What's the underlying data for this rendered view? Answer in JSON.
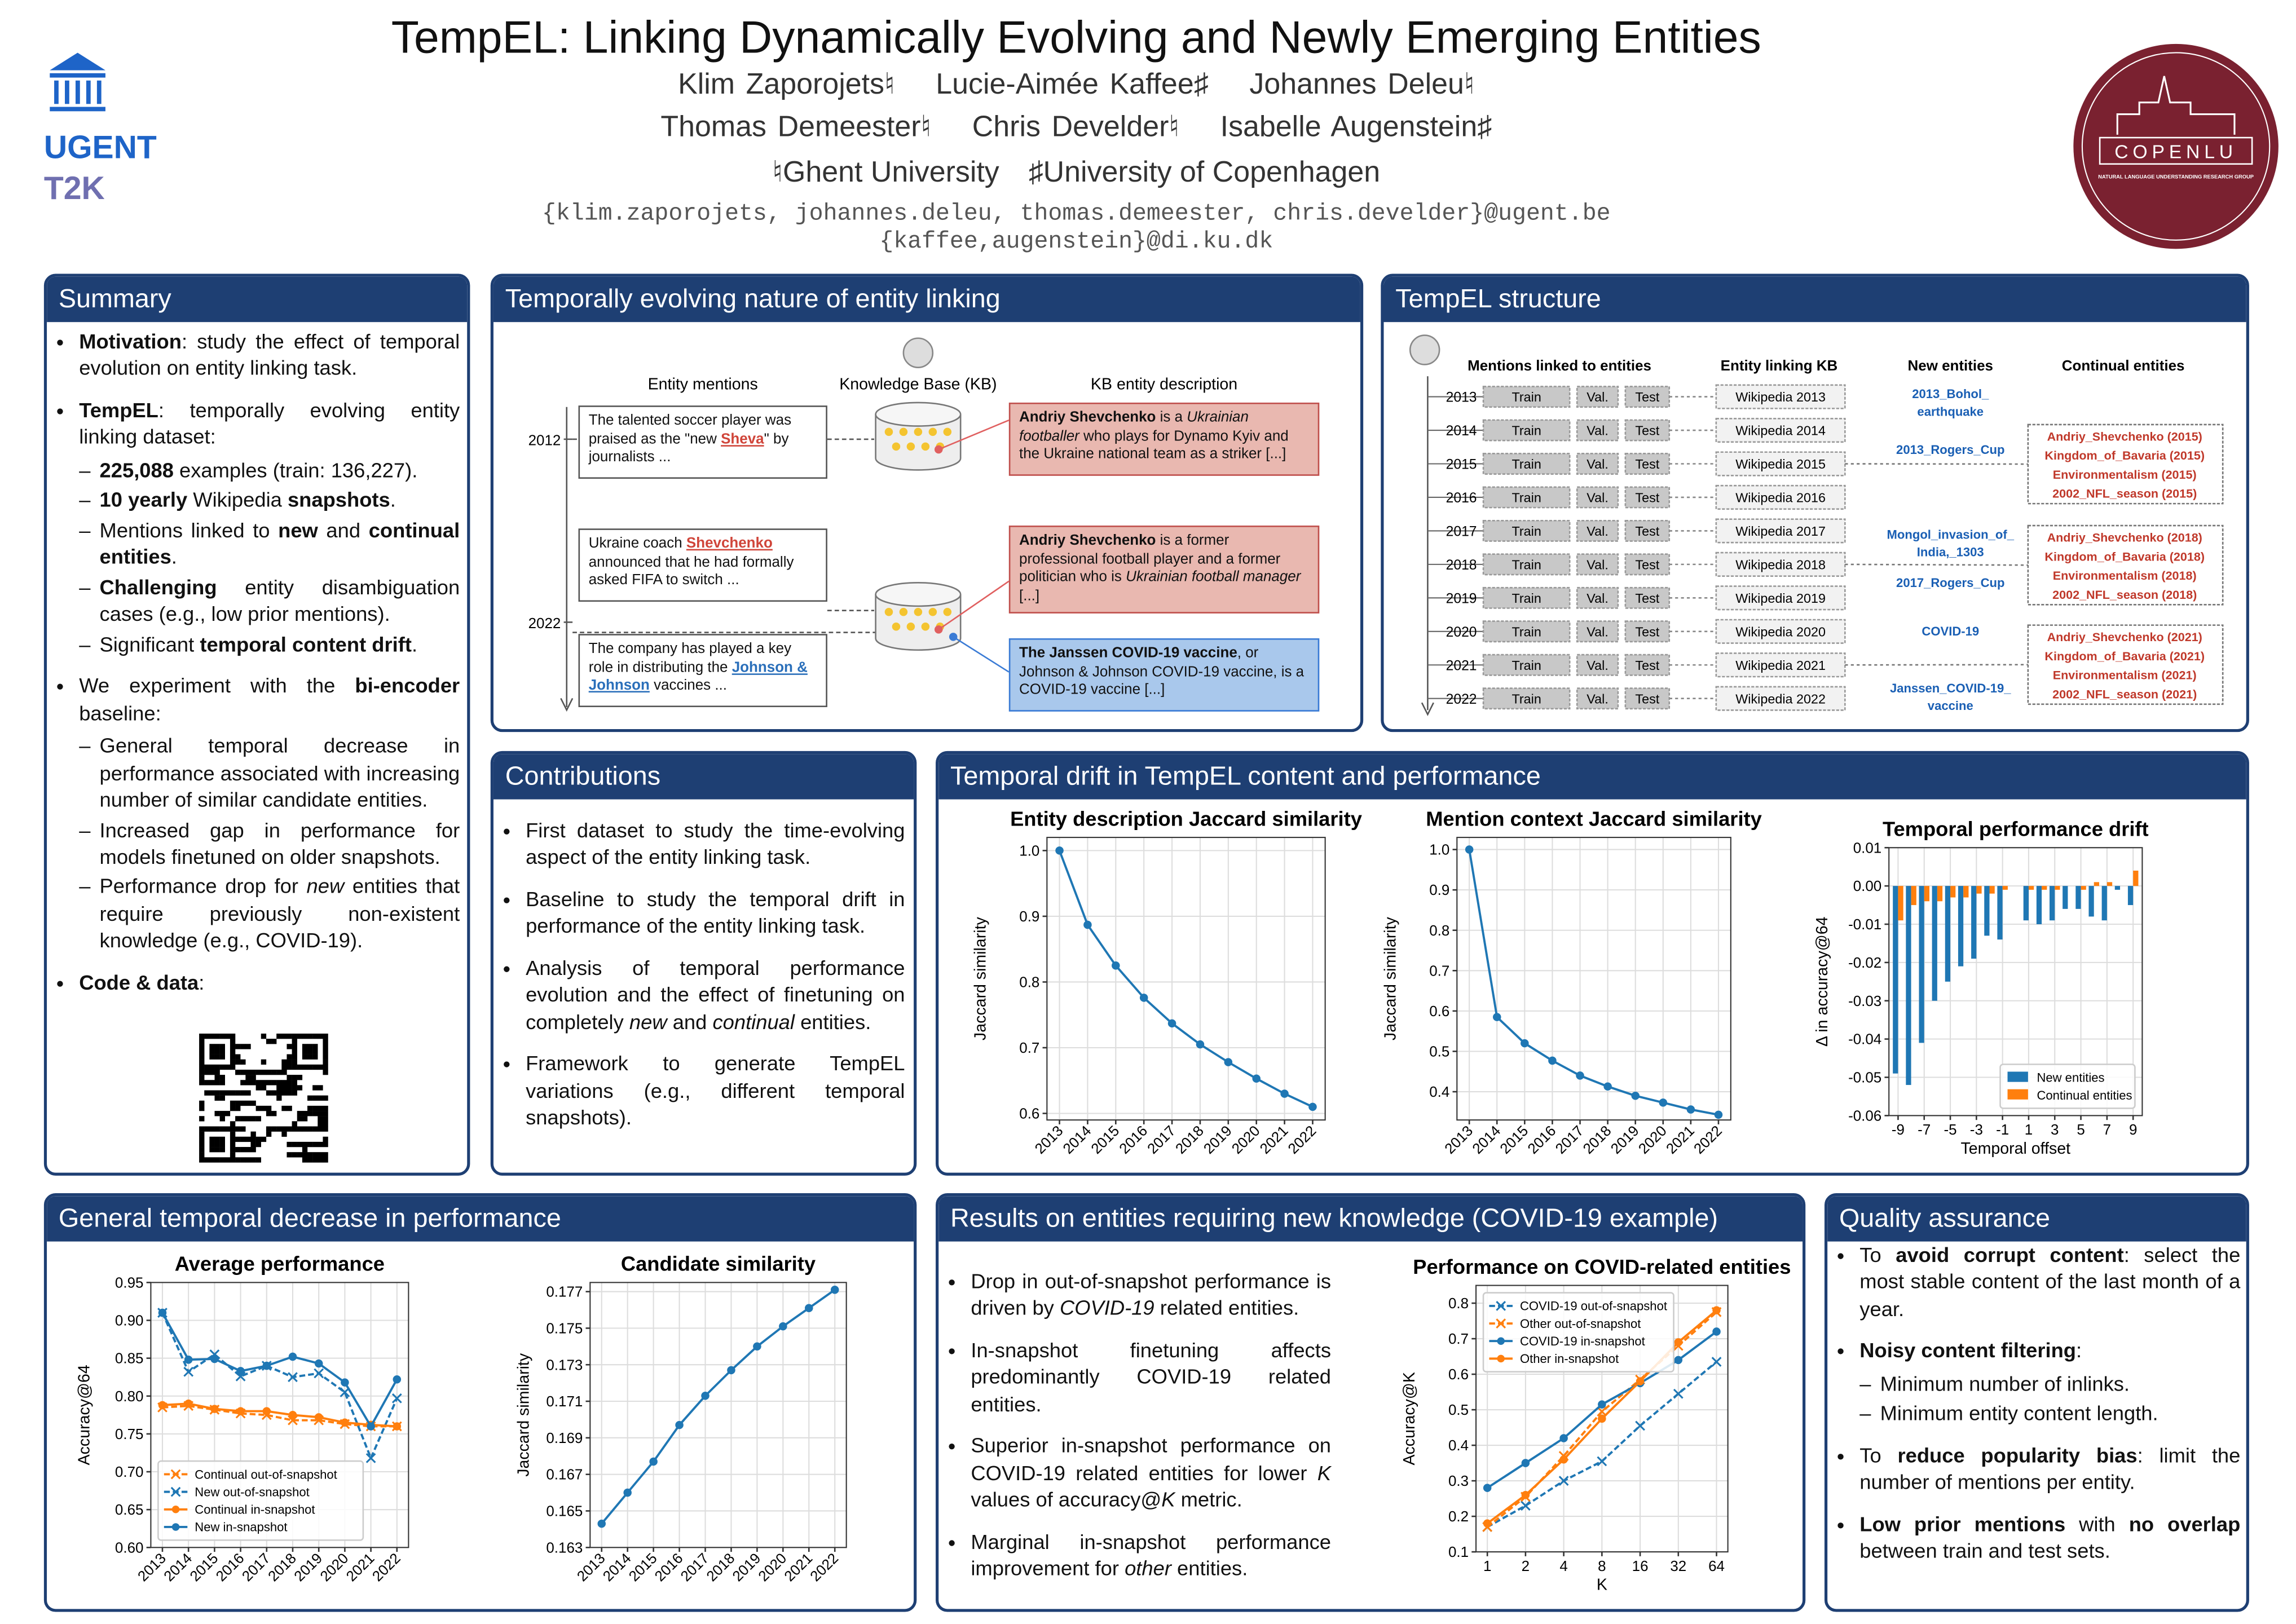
{
  "header": {
    "title": "TempEL: Linking Dynamically Evolving and Newly Emerging Entities",
    "authors": [
      [
        "Klim Zaporojets♮",
        "Lucie-Aimée Kaffee♯",
        "Johannes Deleu♮"
      ],
      [
        "Thomas Demeester♮",
        "Chris Develder♮",
        "Isabelle Augenstein♯"
      ]
    ],
    "affiliations": [
      "♮Ghent University",
      "♯University of Copenhagen"
    ],
    "emails": [
      "{klim.zaporojets, johannes.deleu, thomas.demeester, chris.develder}@ugent.be",
      "{kaffee,augenstein}@di.ku.dk"
    ],
    "logos": {
      "left": [
        "UGENT",
        "T2K"
      ],
      "right": [
        "COPENLU",
        "NATURAL LANGUAGE UNDERSTANDING RESEARCH GROUP"
      ]
    }
  },
  "summary": {
    "title": "Summary",
    "items": [
      {
        "text": [
          {
            "text": "Motivation",
            "style": "bold"
          },
          ": study the effect of temporal evolution on entity linking task."
        ]
      },
      {
        "text": [
          {
            "text": "TempEL",
            "style": "bold"
          },
          ": temporally evolving entity linking dataset:"
        ],
        "sub": [
          [
            {
              "text": "225,088",
              "style": "bold"
            },
            " examples (train: 136,227)."
          ],
          [
            {
              "text": "10 yearly",
              "style": "bold"
            },
            " Wikipedia ",
            {
              "text": "snapshots",
              "style": "bold"
            },
            "."
          ],
          [
            "Mentions linked to ",
            {
              "text": "new",
              "style": "bold"
            },
            " and ",
            {
              "text": "continual entities",
              "style": "bold"
            },
            "."
          ],
          [
            {
              "text": "Challenging",
              "style": "bold"
            },
            " entity disambiguation cases (e.g., low prior mentions)."
          ],
          [
            "Significant ",
            {
              "text": "temporal content drift",
              "style": "bold"
            },
            "."
          ]
        ]
      },
      {
        "text": [
          "We experiment with the ",
          {
            "text": "bi-encoder",
            "style": "bold"
          },
          " baseline:"
        ],
        "sub": [
          [
            "General temporal decrease in performance associated with increasing number of similar candidate entities."
          ],
          [
            "Increased gap in performance for models finetuned on older snapshots."
          ],
          [
            "Performance drop for ",
            {
              "text": "new",
              "style": "italic"
            },
            " entities that require previously non-existent knowledge (e.g., COVID-19)."
          ]
        ]
      },
      {
        "text": [
          {
            "text": "Code & data",
            "style": "bold"
          },
          ":"
        ]
      }
    ]
  },
  "evolving": {
    "title": "Temporally evolving nature of entity linking",
    "headers": [
      "Entity mentions",
      "Knowledge Base (KB)",
      "KB entity description"
    ],
    "years": [
      "2012",
      "2022"
    ],
    "mentions": [
      [
        "The talented soccer player was praised as the \"new ",
        {
          "text": "Sheva",
          "style": "red-link"
        },
        "\" by journalists ..."
      ],
      [
        "Ukraine coach ",
        {
          "text": "Shevchenko",
          "style": "red-link"
        },
        " announced that he had formally asked FIFA to switch ..."
      ],
      [
        "The company has played a key role in distributing the ",
        {
          "text": "Johnson & Johnson",
          "style": "blue-link"
        },
        " vaccines ..."
      ]
    ],
    "descriptions": [
      [
        {
          "text": "Andriy Shevchenko",
          "style": "bold"
        },
        " is a ",
        {
          "text": "Ukrainian footballer",
          "style": "italic"
        },
        " who plays for Dynamo Kyiv and the Ukraine national team as a striker [...]"
      ],
      [
        {
          "text": "Andriy Shevchenko",
          "style": "bold"
        },
        " is a former professional football player and a former politician who is ",
        {
          "text": "Ukrainian football manager",
          "style": "italic"
        },
        " [...]"
      ],
      [
        {
          "text": "The Janssen COVID-19 vaccine",
          "style": "bold"
        },
        ", or Johnson & Johnson COVID-19 vaccine, is a COVID-19 vaccine [...]"
      ]
    ]
  },
  "structure": {
    "title": "TempEL structure",
    "headers": [
      "Mentions linked to entities",
      "Entity linking KB",
      "New entities",
      "Continual entities"
    ],
    "years": [
      "2013",
      "2014",
      "2015",
      "2016",
      "2017",
      "2018",
      "2019",
      "2020",
      "2021",
      "2022"
    ],
    "splits": [
      "Train",
      "Val.",
      "Test"
    ],
    "kb": [
      "Wikipedia 2013",
      "Wikipedia 2014",
      "Wikipedia 2015",
      "Wikipedia 2016",
      "Wikipedia 2017",
      "Wikipedia 2018",
      "Wikipedia 2019",
      "Wikipedia 2020",
      "Wikipedia 2021",
      "Wikipedia 2022"
    ],
    "new_entities": [
      [
        "2013_Bohol_",
        "earthquake"
      ],
      [
        "2013_Rogers_Cup"
      ],
      [
        "Mongol_invasion_of_",
        "India,_1303"
      ],
      [
        "2017_Rogers_Cup"
      ],
      [
        "COVID-19"
      ],
      [
        "Janssen_COVID-19_",
        "vaccine"
      ]
    ],
    "continual_entities": [
      [
        "Andriy_Shevchenko (2015)",
        "Kingdom_of_Bavaria (2015)",
        "Environmentalism (2015)",
        "2002_NFL_season (2015)"
      ],
      [
        "Andriy_Shevchenko (2018)",
        "Kingdom_of_Bavaria (2018)",
        "Environmentalism (2018)",
        "2002_NFL_season (2018)"
      ],
      [
        "Andriy_Shevchenko (2021)",
        "Kingdom_of_Bavaria (2021)",
        "Environmentalism (2021)",
        "2002_NFL_season (2021)"
      ]
    ]
  },
  "contributions": {
    "title": "Contributions",
    "items": [
      [
        "First dataset to study the time-evolving aspect of the entity linking task."
      ],
      [
        "Baseline to study the temporal drift in performance of the entity linking task."
      ],
      [
        "Analysis of temporal performance evolution and the effect of finetuning on completely ",
        {
          "text": "new",
          "style": "italic"
        },
        " and ",
        {
          "text": "continual",
          "style": "italic"
        },
        " entities."
      ],
      [
        "Framework to generate TempEL variations (e.g., different temporal snapshots)."
      ]
    ]
  },
  "drift": {
    "title": "Temporal drift in TempEL content and performance",
    "chart_data": [
      {
        "type": "line",
        "title": "Entity description Jaccard similarity",
        "ylabel": "Jaccard similarity",
        "grid": true,
        "xtick_rotation": 45,
        "categories": [
          "2013",
          "2014",
          "2015",
          "2016",
          "2017",
          "2018",
          "2019",
          "2020",
          "2021",
          "2022"
        ],
        "series": [
          {
            "color": "#1f77b4",
            "marker": "o",
            "values": [
              1.0,
              0.887,
              0.825,
              0.776,
              0.737,
              0.705,
              0.678,
              0.653,
              0.63,
              0.61
            ]
          }
        ],
        "ylim": [
          0.59,
          1.02
        ],
        "yticks": [
          0.6,
          0.7,
          0.8,
          0.9,
          {
            "value": 1,
            "label": "1.0"
          }
        ]
      },
      {
        "type": "line",
        "title": "Mention context Jaccard similarity",
        "ylabel": "Jaccard similarity",
        "grid": true,
        "xtick_rotation": 45,
        "categories": [
          "2013",
          "2014",
          "2015",
          "2016",
          "2017",
          "2018",
          "2019",
          "2020",
          "2021",
          "2022"
        ],
        "series": [
          {
            "color": "#1f77b4",
            "marker": "o",
            "values": [
              1.0,
              0.585,
              0.52,
              0.477,
              0.44,
              0.413,
              0.39,
              0.373,
              0.356,
              0.343
            ]
          }
        ],
        "ylim": [
          0.33,
          1.03
        ],
        "yticks": [
          0.4,
          0.5,
          0.6,
          0.7,
          0.8,
          0.9,
          {
            "value": 1,
            "label": "1.0"
          }
        ]
      },
      {
        "type": "bar",
        "title": "Temporal performance drift",
        "ylabel": "Δ in accuracy@64",
        "xlabel": "Temporal offset",
        "grid": true,
        "legend": "lower right",
        "x": [
          -9,
          -8,
          -7,
          -6,
          -5,
          -4,
          -3,
          -2,
          -1,
          1,
          2,
          3,
          4,
          5,
          6,
          7,
          8,
          9
        ],
        "series": [
          {
            "name": "New entities",
            "color": "#1f77b4",
            "values": [
              -0.049,
              -0.052,
              -0.041,
              -0.03,
              -0.025,
              -0.021,
              -0.019,
              -0.013,
              -0.014,
              -0.009,
              -0.01,
              -0.009,
              -0.006,
              -0.006,
              -0.008,
              -0.009,
              -0.001,
              -0.005
            ]
          },
          {
            "name": "Continual entities",
            "color": "#ff7f0e",
            "values": [
              -0.009,
              -0.005,
              -0.004,
              -0.004,
              -0.003,
              -0.003,
              -0.002,
              -0.002,
              -0.001,
              -0.001,
              -0.001,
              -0.001,
              0.0,
              -0.001,
              0.001,
              0.001,
              0.0,
              0.004
            ]
          }
        ],
        "xlim": [
          -9.7,
          9.7
        ],
        "xticks": [
          -9,
          -7,
          -5,
          -3,
          -1,
          1,
          3,
          5,
          7,
          9
        ],
        "ylim": [
          -0.06,
          0.01
        ],
        "yticks": [
          -0.06,
          -0.05,
          -0.04,
          -0.03,
          -0.02,
          -0.01,
          {
            "value": 0,
            "label": "0.00"
          },
          0.01
        ]
      }
    ]
  },
  "general": {
    "title": "General temporal decrease in performance",
    "chart_data": [
      {
        "type": "line",
        "title": "Average performance",
        "ylabel": "Accuracy@64",
        "grid": true,
        "xtick_rotation": 45,
        "legend": "lower left",
        "categories": [
          "2013",
          "2014",
          "2015",
          "2016",
          "2017",
          "2018",
          "2019",
          "2020",
          "2021",
          "2022"
        ],
        "series": [
          {
            "name": "Continual out-of-snapshot",
            "color": "#ff7f0e",
            "marker": "x",
            "dash": true,
            "values": [
              0.785,
              0.787,
              0.782,
              0.777,
              0.775,
              0.768,
              0.768,
              0.763,
              0.76,
              0.76
            ]
          },
          {
            "name": "New out-of-snapshot",
            "color": "#1f77b4",
            "marker": "x",
            "dash": true,
            "values": [
              0.91,
              0.832,
              0.855,
              0.826,
              0.84,
              0.825,
              0.83,
              0.805,
              0.718,
              0.797
            ]
          },
          {
            "name": "Continual in-snapshot",
            "color": "#ff7f0e",
            "marker": "o",
            "values": [
              0.788,
              0.79,
              0.783,
              0.78,
              0.78,
              0.775,
              0.772,
              0.765,
              0.762,
              0.76
            ]
          },
          {
            "name": "New in-snapshot",
            "color": "#1f77b4",
            "marker": "o",
            "values": [
              0.91,
              0.848,
              0.849,
              0.833,
              0.84,
              0.852,
              0.843,
              0.818,
              0.76,
              0.822
            ]
          }
        ],
        "ylim": [
          0.6,
          0.95
        ],
        "yticks": [
          {
            "value": 0.6,
            "label": "0.60"
          },
          0.65,
          {
            "value": 0.7,
            "label": "0.70"
          },
          0.75,
          {
            "value": 0.8,
            "label": "0.80"
          },
          0.85,
          {
            "value": 0.9,
            "label": "0.90"
          },
          0.95
        ]
      },
      {
        "type": "line",
        "title": "Candidate similarity",
        "ylabel": "Jaccard similarity",
        "grid": true,
        "xtick_rotation": 45,
        "categories": [
          "2013",
          "2014",
          "2015",
          "2016",
          "2017",
          "2018",
          "2019",
          "2020",
          "2021",
          "2022"
        ],
        "series": [
          {
            "color": "#1f77b4",
            "marker": "o",
            "values": [
              0.1643,
              0.166,
              0.1677,
              0.1697,
              0.1713,
              0.1727,
              0.174,
              0.1751,
              0.1761,
              0.1771
            ]
          }
        ],
        "ylim": [
          0.163,
          0.1775
        ],
        "yticks": [
          0.163,
          0.165,
          0.167,
          0.169,
          0.171,
          0.173,
          0.175,
          0.177
        ]
      }
    ]
  },
  "covid": {
    "title": "Results on entities requiring new knowledge (COVID-19 example)",
    "items": [
      [
        "Drop in out-of-snapshot performance is driven by ",
        {
          "text": "COVID-19",
          "style": "italic"
        },
        " related entities."
      ],
      [
        "In-snapshot finetuning affects predominantly COVID-19 related entities."
      ],
      [
        "Superior in-snapshot performance on COVID-19 related entities for lower ",
        {
          "text": "K",
          "style": "italic"
        },
        " values of accuracy@",
        {
          "text": "K",
          "style": "italic"
        },
        " metric."
      ],
      [
        "Marginal in-snapshot performance improvement for ",
        {
          "text": "other",
          "style": "italic"
        },
        " entities."
      ]
    ],
    "chart_data": {
      "type": "line",
      "title": "Performance on COVID-related entities",
      "xlabel": "K",
      "ylabel": "Accuracy@K",
      "grid": true,
      "legend": "upper left",
      "categories": [
        "1",
        "2",
        "4",
        "8",
        "16",
        "32",
        "64"
      ],
      "series": [
        {
          "name": "COVID-19 out-of-snapshot",
          "color": "#1f77b4",
          "marker": "x",
          "dash": true,
          "values": [
            0.17,
            0.23,
            0.3,
            0.355,
            0.455,
            0.545,
            0.635
          ]
        },
        {
          "name": "Other out-of-snapshot",
          "color": "#ff7f0e",
          "marker": "x",
          "dash": true,
          "values": [
            0.17,
            0.255,
            0.37,
            0.495,
            0.585,
            0.68,
            0.775
          ]
        },
        {
          "name": "COVID-19 in-snapshot",
          "color": "#1f77b4",
          "marker": "o",
          "values": [
            0.28,
            0.35,
            0.42,
            0.515,
            0.575,
            0.64,
            0.72
          ]
        },
        {
          "name": "Other in-snapshot",
          "color": "#ff7f0e",
          "marker": "o",
          "values": [
            0.18,
            0.26,
            0.36,
            0.475,
            0.58,
            0.69,
            0.78
          ]
        }
      ],
      "ylim": [
        0.1,
        0.85
      ],
      "yticks": [
        0.1,
        0.2,
        0.3,
        0.4,
        0.5,
        0.6,
        0.7,
        0.8
      ]
    }
  },
  "quality": {
    "title": "Quality assurance",
    "items": [
      {
        "text": [
          "To ",
          {
            "text": "avoid corrupt content",
            "style": "bold"
          },
          ": select the most stable content of the last month of a year."
        ]
      },
      {
        "text": [
          {
            "text": "Noisy content filtering",
            "style": "bold"
          },
          ":"
        ],
        "sub": [
          [
            "Minimum number of inlinks."
          ],
          [
            "Minimum entity content length."
          ]
        ]
      },
      {
        "text": [
          "To ",
          {
            "text": "reduce popularity bias",
            "style": "bold"
          },
          ": limit the number of mentions per entity."
        ]
      },
      {
        "text": [
          {
            "text": "Low prior mentions",
            "style": "bold"
          },
          " with ",
          {
            "text": "no overlap",
            "style": "bold"
          },
          " between train and test sets."
        ]
      }
    ]
  }
}
